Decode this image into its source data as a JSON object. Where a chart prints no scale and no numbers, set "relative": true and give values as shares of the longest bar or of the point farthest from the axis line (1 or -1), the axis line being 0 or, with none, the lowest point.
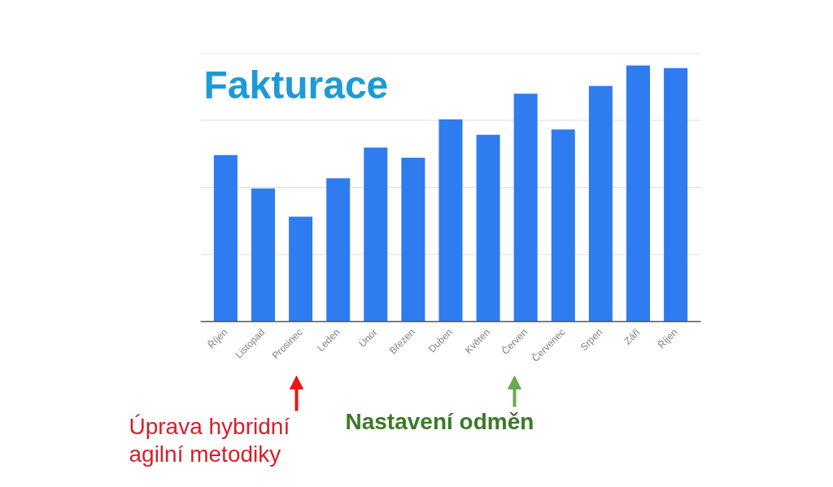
{
  "chart_data": {
    "type": "bar",
    "title": "Fakturace",
    "categories": [
      "Říjen",
      "Listopad",
      "Prosinec",
      "Leden",
      "Únor",
      "Březen",
      "Duben",
      "Květen",
      "Červen",
      "Červenec",
      "Srpen",
      "Září",
      "Říjen"
    ],
    "values": [
      0.65,
      0.52,
      0.41,
      0.56,
      0.68,
      0.64,
      0.79,
      0.73,
      0.89,
      0.75,
      0.92,
      1,
      0.99
    ],
    "color": "#2e7cf0",
    "relative": true,
    "grid": "y",
    "annotations": [
      "Úprava hybridní\nagilní metodiky",
      "Nastavení odměn"
    ]
  }
}
